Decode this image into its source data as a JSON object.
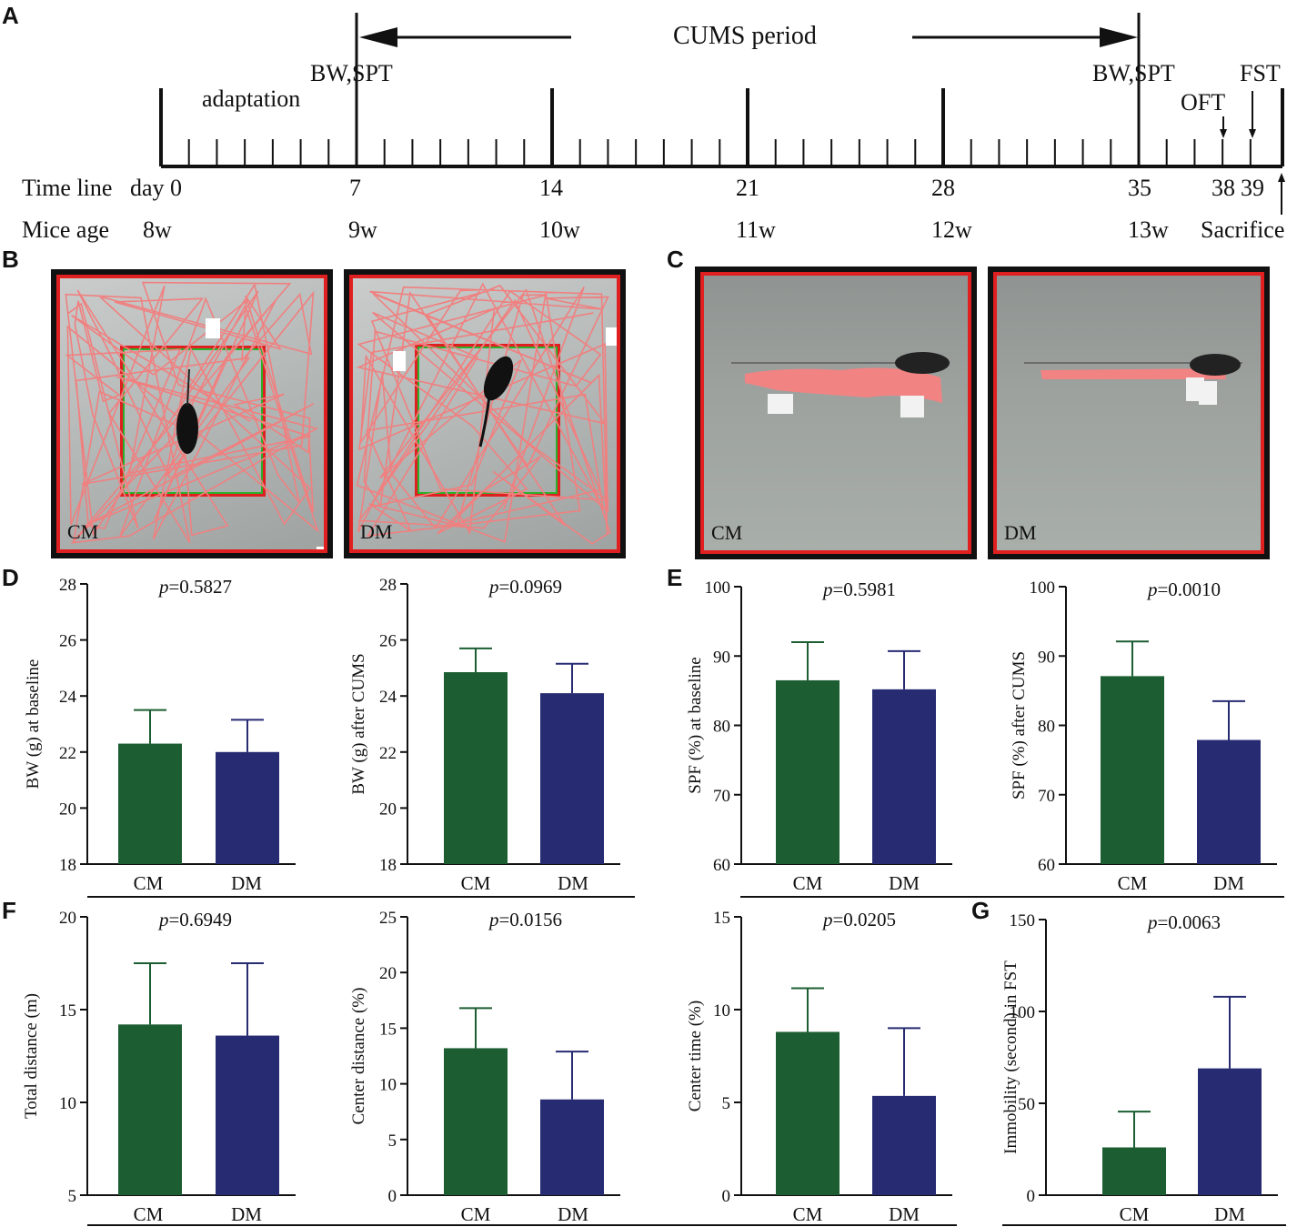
{
  "figure": {
    "panel_labels": {
      "A": "A",
      "B": "B",
      "C": "C",
      "D": "D",
      "E": "E",
      "F": "F",
      "G": "G"
    }
  },
  "timeline": {
    "period_label": "CUMS period",
    "adaptation_label": "adaptation",
    "row_timeline_label": "Time line",
    "row_age_label": "Mice age",
    "day_labels": [
      "day 0",
      "7",
      "14",
      "21",
      "28",
      "35",
      "38",
      "39"
    ],
    "age_labels": [
      "8w",
      "9w",
      "10w",
      "11w",
      "12w",
      "13w"
    ],
    "event_labels": {
      "bw_spt_start": "BW,SPT",
      "bw_spt_end": "BW,SPT",
      "oft": "OFT",
      "fst": "FST",
      "sacrifice": "Sacrifice"
    }
  },
  "arenas": {
    "open_field": [
      {
        "label": "CM"
      },
      {
        "label": "DM"
      }
    ],
    "forced_swim": [
      {
        "label": "CM"
      },
      {
        "label": "DM"
      }
    ]
  },
  "colors": {
    "cm": "#1c5e32",
    "dm": "#272b72",
    "track": "#f08080",
    "frame_red": "#e02020",
    "center_green": "#2bb02b",
    "arena_bg": "#b8bdbc"
  },
  "chart_data": [
    {
      "id": "D1",
      "type": "bar",
      "categories": [
        "CM",
        "DM"
      ],
      "values": [
        22.3,
        22.0
      ],
      "errors": [
        1.2,
        1.15
      ],
      "ylim": [
        18,
        28
      ],
      "ticks": [
        18,
        20,
        22,
        24,
        26,
        28
      ],
      "ylabel": "BW (g) at baseline",
      "p_prefix": "p",
      "p_value": "=0.5827"
    },
    {
      "id": "D2",
      "type": "bar",
      "categories": [
        "CM",
        "DM"
      ],
      "values": [
        24.85,
        24.1
      ],
      "errors": [
        0.85,
        1.05
      ],
      "ylim": [
        18,
        28
      ],
      "ticks": [
        18,
        20,
        22,
        24,
        26,
        28
      ],
      "ylabel": "BW (g) after CUMS",
      "p_prefix": "p",
      "p_value": "=0.0969"
    },
    {
      "id": "E1",
      "type": "bar",
      "categories": [
        "CM",
        "DM"
      ],
      "values": [
        86.5,
        85.2
      ],
      "errors": [
        5.5,
        5.5
      ],
      "ylim": [
        60,
        100
      ],
      "ticks": [
        60,
        70,
        80,
        90,
        100
      ],
      "ylabel": "SPF (%) at baseline",
      "p_prefix": "p",
      "p_value": "=0.5981"
    },
    {
      "id": "E2",
      "type": "bar",
      "categories": [
        "CM",
        "DM"
      ],
      "values": [
        87.1,
        77.9
      ],
      "errors": [
        5.0,
        5.6
      ],
      "ylim": [
        60,
        100
      ],
      "ticks": [
        60,
        70,
        80,
        90,
        100
      ],
      "ylabel": "SPF (%) after CUMS",
      "p_prefix": "p",
      "p_value": "=0.0010"
    },
    {
      "id": "F1",
      "type": "bar",
      "categories": [
        "CM",
        "DM"
      ],
      "values": [
        14.2,
        13.6
      ],
      "errors": [
        3.3,
        3.9
      ],
      "ylim": [
        5,
        20
      ],
      "ticks": [
        5,
        10,
        15,
        20
      ],
      "ylabel": "Total distance (m)",
      "p_prefix": "p",
      "p_value": "=0.6949"
    },
    {
      "id": "F2",
      "type": "bar",
      "categories": [
        "CM",
        "DM"
      ],
      "values": [
        13.2,
        8.6
      ],
      "errors": [
        3.6,
        4.3
      ],
      "ylim": [
        0,
        25
      ],
      "ticks": [
        0,
        5,
        10,
        15,
        20,
        25
      ],
      "ylabel": "Center distance (%)",
      "p_prefix": "p",
      "p_value": "=0.0156"
    },
    {
      "id": "F3",
      "type": "bar",
      "categories": [
        "CM",
        "DM"
      ],
      "values": [
        8.8,
        5.35
      ],
      "errors": [
        2.35,
        3.65
      ],
      "ylim": [
        0,
        15
      ],
      "ticks": [
        0,
        5,
        10,
        15
      ],
      "ylabel": "Center time (%)",
      "p_prefix": "p",
      "p_value": "=0.0205"
    },
    {
      "id": "G1",
      "type": "bar",
      "categories": [
        "CM",
        "DM"
      ],
      "values": [
        26,
        69
      ],
      "errors": [
        19.5,
        39
      ],
      "ylim": [
        0,
        150
      ],
      "ticks": [
        0,
        50,
        100,
        150
      ],
      "ylabel": "Immobility (second) in FST",
      "p_prefix": "p",
      "p_value": "=0.0063"
    }
  ]
}
